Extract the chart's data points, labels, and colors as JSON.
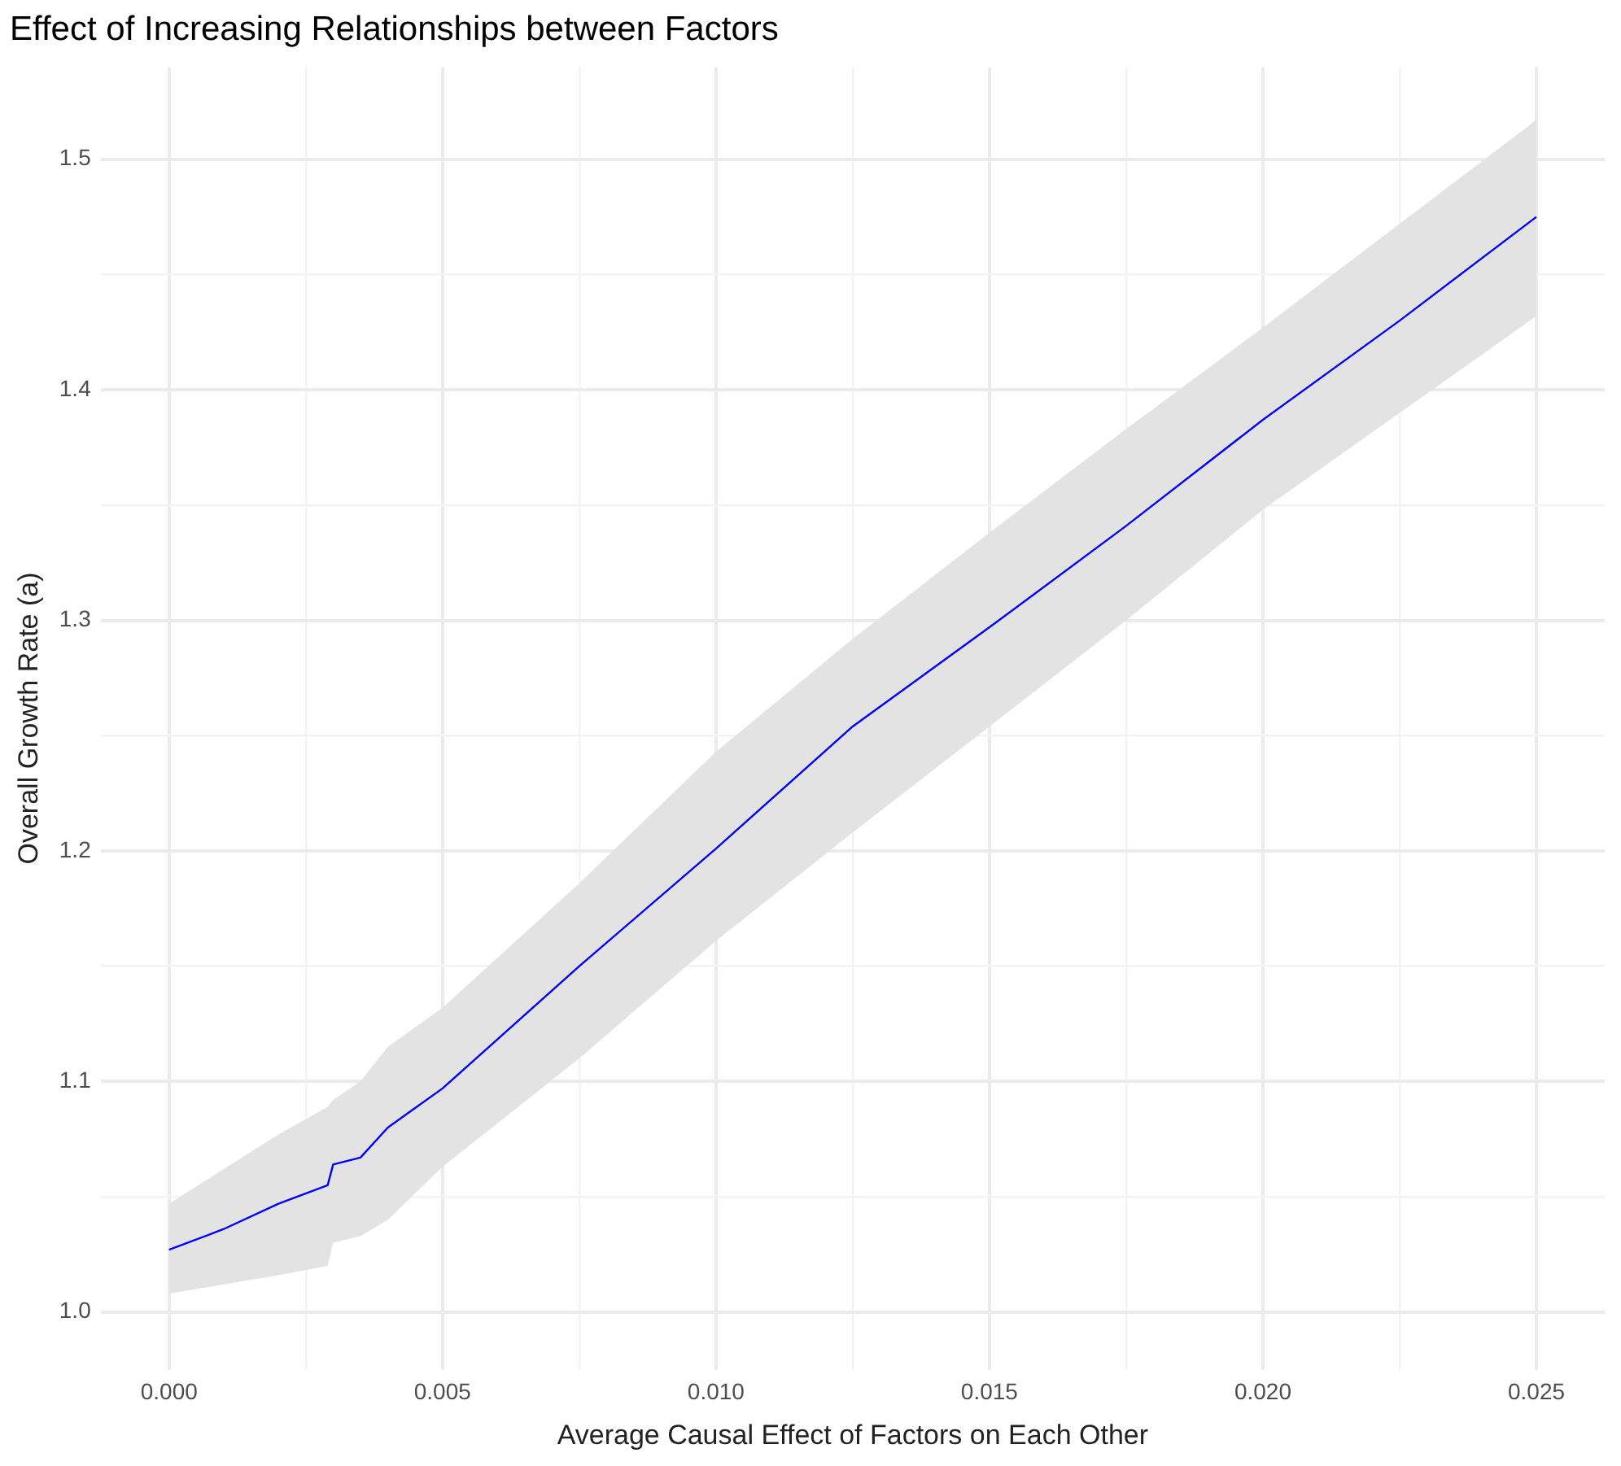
{
  "chart_data": {
    "type": "line",
    "title": "Effect of Increasing Relationships between Factors",
    "xlabel": "Average Causal Effect of Factors on Each Other",
    "ylabel": "Overall Growth Rate (a)",
    "xlim": [
      -0.00125,
      0.02625
    ],
    "ylim": [
      0.975,
      1.54
    ],
    "xticks": [
      {
        "value": 0,
        "label": "0.000"
      },
      {
        "value": 0.0025,
        "label": null
      },
      {
        "value": 0.005,
        "label": "0.005"
      },
      {
        "value": 0.0075,
        "label": null
      },
      {
        "value": 0.01,
        "label": "0.010"
      },
      {
        "value": 0.0125,
        "label": null
      },
      {
        "value": 0.015,
        "label": "0.015"
      },
      {
        "value": 0.0175,
        "label": null
      },
      {
        "value": 0.02,
        "label": "0.020"
      },
      {
        "value": 0.0225,
        "label": null
      },
      {
        "value": 0.025,
        "label": "0.025"
      }
    ],
    "yticks": [
      {
        "value": 1,
        "label": "1.0"
      },
      {
        "value": 1.05,
        "label": null
      },
      {
        "value": 1.1,
        "label": "1.1"
      },
      {
        "value": 1.15,
        "label": null
      },
      {
        "value": 1.2,
        "label": "1.2"
      },
      {
        "value": 1.25,
        "label": null
      },
      {
        "value": 1.3,
        "label": "1.3"
      },
      {
        "value": 1.35,
        "label": null
      },
      {
        "value": 1.4,
        "label": "1.4"
      },
      {
        "value": 1.45,
        "label": null
      },
      {
        "value": 1.5,
        "label": "1.5"
      }
    ],
    "grid": true,
    "legend": false,
    "marker": "none",
    "line_style": "solid",
    "series": [
      {
        "color": "#0000ff",
        "x": [
          0,
          0.001,
          0.002,
          0.0029,
          0.003,
          0.0035,
          0.004,
          0.005,
          0.0075,
          0.01,
          0.0125,
          0.015,
          0.0175,
          0.02,
          0.0225,
          0.025
        ],
        "values": [
          1.027,
          1.036,
          1.047,
          1.055,
          1.064,
          1.067,
          1.08,
          1.097,
          1.15,
          1.201,
          1.254,
          1.297,
          1.341,
          1.387,
          1.43,
          1.475
        ],
        "lower": [
          1.008,
          1.012,
          1.016,
          1.02,
          1.03,
          1.033,
          1.04,
          1.063,
          1.11,
          1.161,
          1.208,
          1.254,
          1.3,
          1.348,
          1.39,
          1.432
        ],
        "upper": [
          1.047,
          1.062,
          1.077,
          1.089,
          1.092,
          1.1,
          1.115,
          1.132,
          1.186,
          1.243,
          1.292,
          1.338,
          1.383,
          1.427,
          1.472,
          1.517
        ]
      }
    ]
  }
}
